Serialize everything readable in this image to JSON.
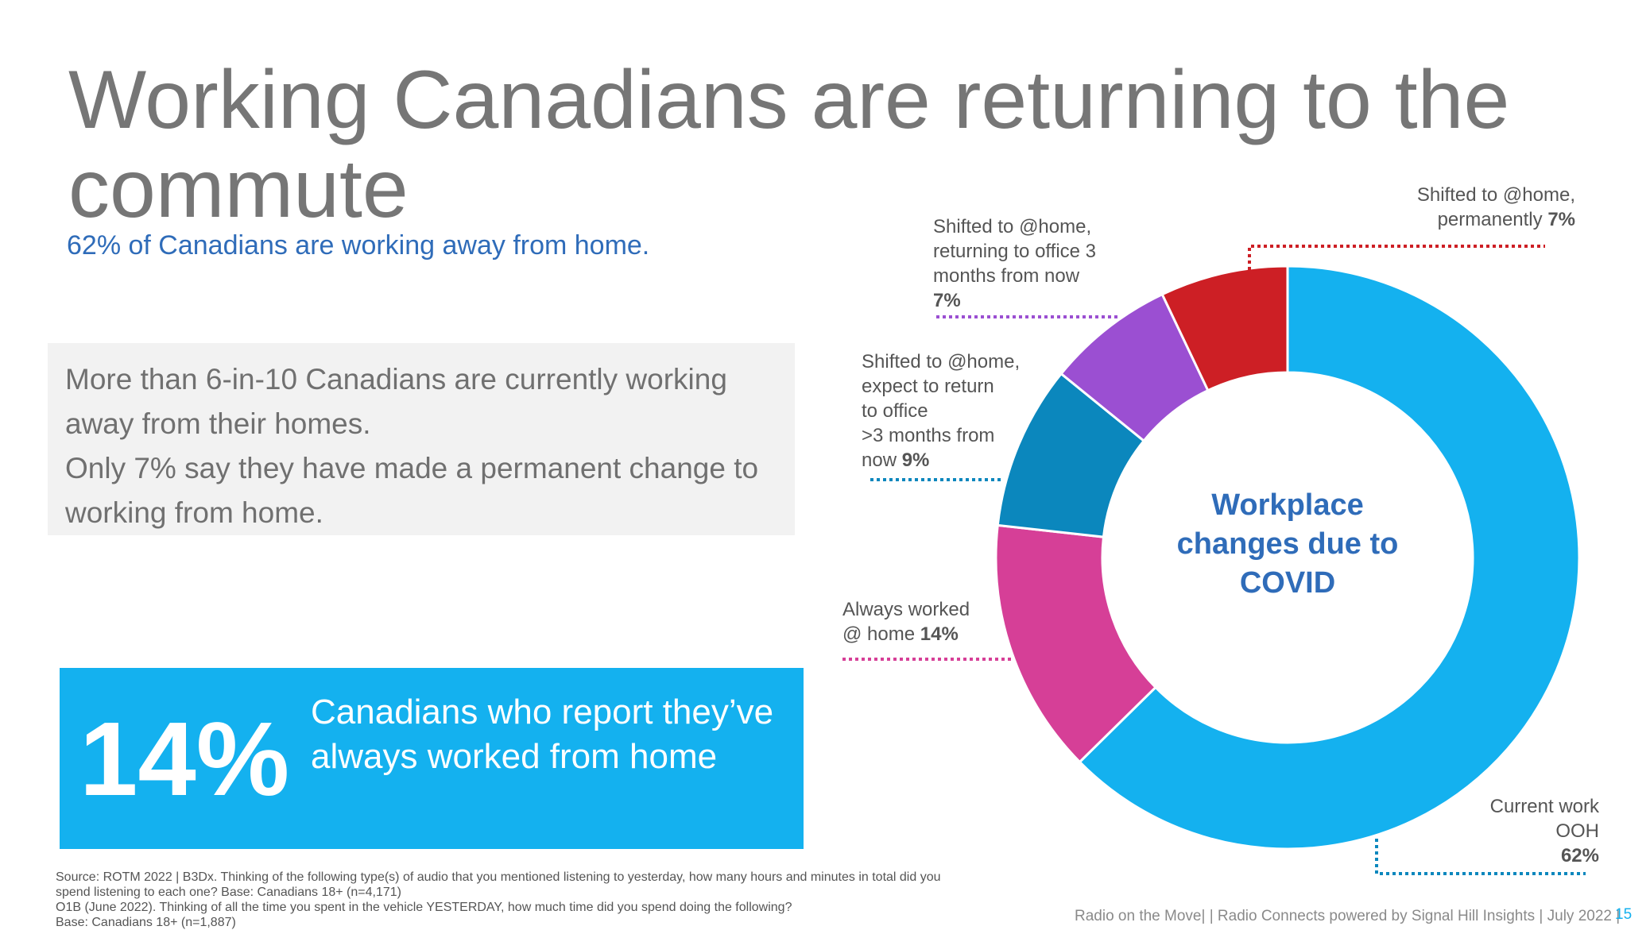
{
  "title": "Working Canadians are returning to the commute",
  "subtitle": "62% of Canadians are working away from home.",
  "summary_box": {
    "lines": [
      "More than 6-in-10 Canadians are currently working",
      "away from their homes.",
      "Only 7% say they have made a permanent change to",
      "working from home."
    ]
  },
  "highlight": {
    "value": "14%",
    "caption": "Canadians who report they’ve always worked from home"
  },
  "source_note": {
    "lines": [
      "Source:  ROTM 2022 | B3Dx. Thinking of the following type(s) of audio that you mentioned listening to yesterday, how many hours and minutes in total did you",
      "spend listening to each one?  Base: Canadians 18+ (n=4,171)",
      "O1B (June 2022). Thinking of all the time you spent in the vehicle YESTERDAY, how much time did you spend doing the following?",
      "Base: Canadians 18+ (n=1,887)"
    ]
  },
  "footer": "Radio on the Move| | Radio Connects powered by Signal Hill Insights | July 2022 |",
  "page_number": "15",
  "chart_data": {
    "type": "pie",
    "donut": true,
    "center_label": "Workplace changes due to COVID",
    "slices": [
      {
        "label": "Current work\nOOH",
        "value": 62,
        "value_label": "62%",
        "color": "#14b1ef"
      },
      {
        "label": "Always worked\n@ home",
        "value": 14,
        "value_label": "14%",
        "color": "#d63f97"
      },
      {
        "label": "Shifted to @home,\nexpect to return\n to office\n>3 months from\n now",
        "value": 9,
        "value_label": "9%",
        "color": "#0b87bd"
      },
      {
        "label": "Shifted to @home,\nreturning to office 3\nmonths from now",
        "value": 7,
        "value_label": "7%",
        "color": "#9b4fd2"
      },
      {
        "label": "Shifted to @home,\npermanently",
        "value": 7,
        "value_label": "7%",
        "color": "#cd1f25"
      }
    ]
  }
}
